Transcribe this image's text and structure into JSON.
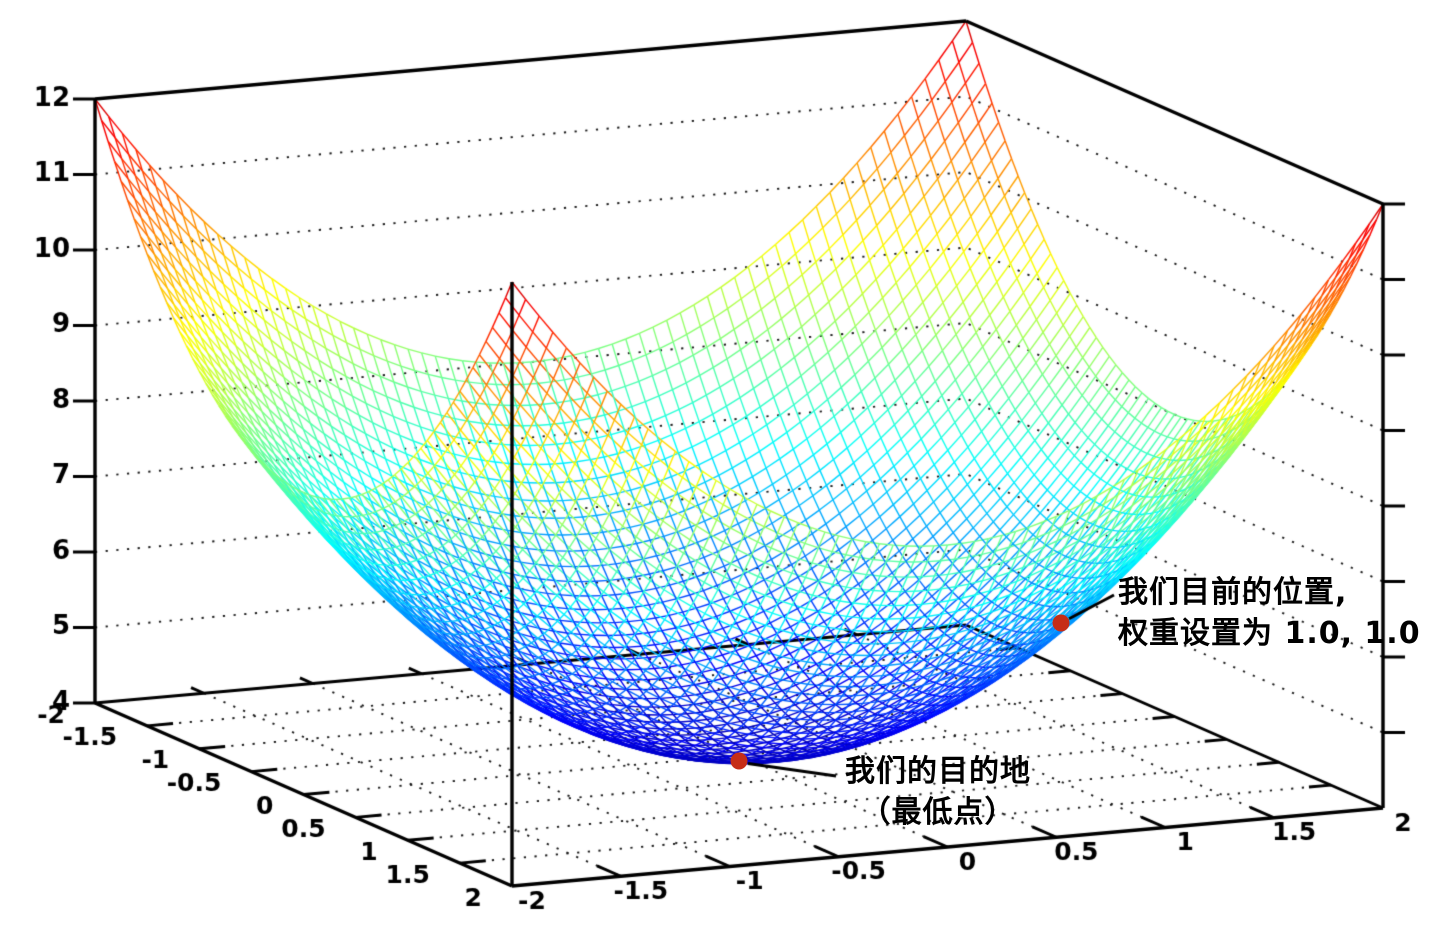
{
  "figure": {
    "background": "#ffffff",
    "axis_color": "#000000",
    "grid_dot_color": "#1a1a1a"
  },
  "chart_data": {
    "type": "surface-wireframe",
    "title": "",
    "surface": {
      "formula": "z = x^2 + y^2 + 4",
      "x_range": [
        -2,
        2
      ],
      "y_range": [
        -2,
        2
      ],
      "z_range": [
        4,
        12
      ],
      "grid_divisions": 64,
      "colormap": "jet-rainbow (blue low to red high)",
      "colormap_stops": [
        "#0000bd",
        "#0096ff",
        "#70ff8f",
        "#ffb400",
        "#d90000"
      ]
    },
    "axes": {
      "x_ticks": [
        -2,
        -1.5,
        -1,
        -0.5,
        0,
        0.5,
        1,
        1.5,
        2
      ],
      "y_ticks": [
        -2,
        -1.5,
        -1,
        -0.5,
        0,
        0.5,
        1,
        1.5,
        2
      ],
      "z_ticks": [
        4,
        5,
        6,
        7,
        8,
        9,
        10,
        11,
        12
      ],
      "wall_gridline_z_levels": [
        5,
        6,
        7,
        8,
        9,
        10,
        11
      ],
      "floor_grid_step": 0.5,
      "grid_style": "dotted"
    },
    "points": [
      {
        "id": "current-position",
        "x": 1,
        "y": 1,
        "z": 6,
        "marker_color": "#c62d17",
        "label_line1": "我们目前的位置,",
        "label_line2": "权重设置为 1.0, 1.0"
      },
      {
        "id": "destination",
        "x": 0,
        "y": 0,
        "z": 4,
        "marker_color": "#c62d17",
        "label_line1": "我们的目的地",
        "label_line2": "（最低点）"
      }
    ]
  }
}
